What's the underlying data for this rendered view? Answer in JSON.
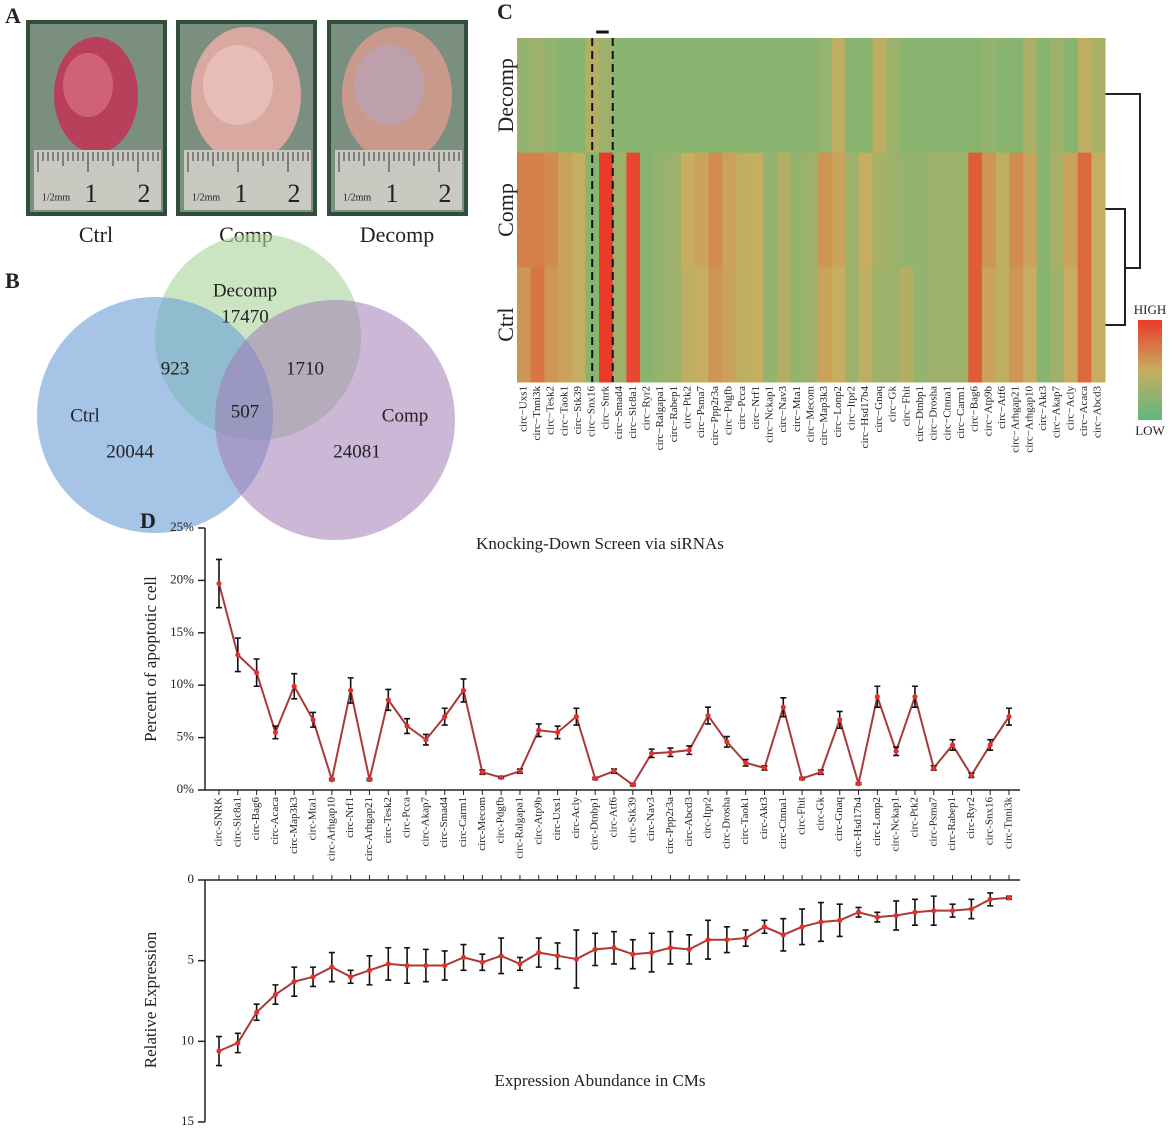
{
  "panel_labels": [
    "A",
    "B",
    "C",
    "D"
  ],
  "panel_a": {
    "samples": [
      "Ctrl",
      "Comp",
      "Decomp"
    ],
    "ruler_labels": [
      "1/2mm",
      "1",
      "2"
    ]
  },
  "panel_b": {
    "sets": [
      {
        "name": "Decomp",
        "color": "#a8d49a"
      },
      {
        "name": "Ctrl",
        "color": "#6b9fd6"
      },
      {
        "name": "Comp",
        "color": "#a37cb6"
      }
    ],
    "regions": [
      {
        "value": 17470
      },
      {
        "value": 923
      },
      {
        "value": 1710
      },
      {
        "value": 507
      },
      {
        "value": 20044
      },
      {
        "value": 24081
      }
    ]
  },
  "chart_data": [
    {
      "type": "heatmap",
      "rows": [
        "Decomp",
        "Comp",
        "Ctrl"
      ],
      "columns": [
        "circ−Uxs1",
        "circ−Tnni3k",
        "circ−Tesk2",
        "circ−Taok1",
        "circ−Stk39",
        "circ−Snx16",
        "circ−Snrk",
        "circ−Smad4",
        "circ−Slc8a1",
        "circ−Ryr2",
        "circ−Ralgapa1",
        "circ−Rabep1",
        "circ−Ptk2",
        "circ−Psma7",
        "circ−Ppp2r3a",
        "circ−Pdgfb",
        "circ−Pcca",
        "circ−Nrf1",
        "circ−Nckap1",
        "circ−Nav3",
        "circ−Mta1",
        "circ−Mecom",
        "circ−Map3k3",
        "circ−Lonp2",
        "circ−Itpr2",
        "circ−Hsd17b4",
        "circ−Gnaq",
        "circ−Gk",
        "circ−Fhit",
        "circ−Dtnbp1",
        "circ−Drosha",
        "circ−Ctnna1",
        "circ−Carm1",
        "circ−Bag6",
        "circ−Atp9b",
        "circ−Atf6",
        "circ−Arhgap21",
        "circ−Arhgap10",
        "circ−Akt3",
        "circ−Akap7",
        "circ−Acly",
        "circ−Acaca",
        "circ−Abcd3"
      ],
      "values": [
        [
          0.25,
          0.3,
          0.25,
          0.2,
          0.2,
          0.4,
          0.3,
          0.2,
          0.2,
          0.2,
          0.2,
          0.2,
          0.2,
          0.2,
          0.2,
          0.2,
          0.2,
          0.2,
          0.2,
          0.2,
          0.2,
          0.2,
          0.25,
          0.45,
          0.2,
          0.2,
          0.45,
          0.3,
          0.2,
          0.2,
          0.2,
          0.2,
          0.2,
          0.2,
          0.25,
          0.2,
          0.2,
          0.35,
          0.2,
          0.3,
          0.2,
          0.45,
          0.35
        ],
        [
          0.7,
          0.7,
          0.65,
          0.55,
          0.5,
          0.2,
          1.0,
          0.3,
          0.95,
          0.2,
          0.25,
          0.3,
          0.5,
          0.55,
          0.65,
          0.55,
          0.45,
          0.5,
          0.25,
          0.4,
          0.25,
          0.3,
          0.6,
          0.55,
          0.3,
          0.5,
          0.35,
          0.3,
          0.25,
          0.25,
          0.3,
          0.3,
          0.3,
          0.85,
          0.6,
          0.45,
          0.65,
          0.55,
          0.2,
          0.35,
          0.55,
          0.8,
          0.5
        ],
        [
          0.6,
          0.75,
          0.6,
          0.55,
          0.5,
          0.2,
          1.0,
          0.3,
          0.95,
          0.2,
          0.25,
          0.3,
          0.45,
          0.5,
          0.6,
          0.55,
          0.45,
          0.5,
          0.25,
          0.4,
          0.25,
          0.3,
          0.55,
          0.5,
          0.3,
          0.45,
          0.3,
          0.3,
          0.4,
          0.25,
          0.3,
          0.3,
          0.3,
          0.85,
          0.55,
          0.45,
          0.6,
          0.5,
          0.2,
          0.3,
          0.5,
          0.8,
          0.5
        ]
      ],
      "colors": [
        "#5fb87c",
        "#c7ad5f",
        "#ea3a2a"
      ],
      "legend": [
        "HIGH",
        "LOW"
      ]
    },
    {
      "type": "line",
      "title": "Knocking-Down Screen via siRNAs",
      "ylabel": "Percent of apoptotic cell",
      "categories": [
        "circ-SNRK",
        "circ-Slc8a1",
        "circ-Bag6",
        "circ-Acaca",
        "circ-Map3k3",
        "circ-Mta1",
        "circ-Arhgap10",
        "circ-Nrf1",
        "circ-Arhgap21",
        "circ-Tesk2",
        "circ-Pcca",
        "circ-Akap7",
        "circ-Smad4",
        "circ-Carm1",
        "circ-Mecom",
        "circ-Pdgfb",
        "circ-Ralgapa1",
        "circ-Atp9b",
        "circ-Uxs1",
        "circ-Acly",
        "circ-Dtnbp1",
        "circ-Atf6",
        "circ-Stk39",
        "circ-Nav3",
        "circ-Ppp2r3a",
        "circ-Abcd3",
        "circ-Itpr2",
        "circ-Drosha",
        "circ-Taok1",
        "circ-Akt3",
        "circ-Ctnna1",
        "circ-Fhit",
        "circ-Gk",
        "circ-Gnaq",
        "circ-Hsd17b4",
        "circ-Lonp2",
        "circ-Nckap1",
        "circ-Ptk2",
        "circ-Psma7",
        "circ-Rabep1",
        "circ-Ryr2",
        "circ-Snx16",
        "circ-Tnni3k"
      ],
      "highlight_category": 0,
      "highlight_color": "#d9542b",
      "values": [
        19.7,
        12.9,
        11.2,
        5.5,
        9.9,
        6.7,
        1.0,
        9.5,
        1.0,
        8.6,
        6.1,
        4.8,
        7.0,
        9.5,
        1.7,
        1.2,
        1.8,
        5.7,
        5.5,
        7.0,
        1.1,
        1.8,
        0.5,
        3.5,
        3.6,
        3.8,
        7.1,
        4.6,
        2.6,
        2.1,
        7.9,
        1.1,
        1.7,
        6.7,
        0.6,
        8.9,
        3.7,
        8.9,
        2.1,
        4.3,
        1.4,
        4.3,
        7.0
      ],
      "errors": [
        2.3,
        1.6,
        1.3,
        0.6,
        1.2,
        0.7,
        0.1,
        1.2,
        0.1,
        1.0,
        0.7,
        0.5,
        0.8,
        1.1,
        0.2,
        0.1,
        0.2,
        0.6,
        0.6,
        0.8,
        0.1,
        0.2,
        0.1,
        0.4,
        0.4,
        0.4,
        0.8,
        0.5,
        0.3,
        0.2,
        0.9,
        0.1,
        0.2,
        0.8,
        0.1,
        1.0,
        0.4,
        1.0,
        0.2,
        0.5,
        0.2,
        0.5,
        0.8
      ],
      "color": "#a83a3a",
      "point_color": "#e3302a",
      "ylim": [
        0,
        25
      ],
      "yticks": [
        {
          "value": 0,
          "label": "0%"
        },
        {
          "value": 5,
          "label": "5%"
        },
        {
          "value": 10,
          "label": "10%"
        },
        {
          "value": 15,
          "label": "15%"
        },
        {
          "value": 20,
          "label": "20%"
        },
        {
          "value": 25,
          "label": "25%"
        }
      ]
    },
    {
      "type": "line",
      "title": "Expression Abundance in CMs",
      "ylabel": "Relative Expression",
      "inverted": true,
      "values": [
        10.6,
        10.1,
        8.2,
        7.1,
        6.3,
        6.0,
        5.4,
        6.0,
        5.6,
        5.2,
        5.3,
        5.3,
        5.3,
        4.8,
        5.1,
        4.7,
        5.2,
        4.5,
        4.7,
        4.9,
        4.3,
        4.2,
        4.6,
        4.5,
        4.2,
        4.3,
        3.7,
        3.7,
        3.6,
        2.9,
        3.4,
        2.9,
        2.6,
        2.5,
        2.0,
        2.3,
        2.2,
        2.0,
        1.9,
        1.9,
        1.8,
        1.2,
        1.1
      ],
      "errors": [
        0.9,
        0.6,
        0.5,
        0.6,
        0.9,
        0.6,
        0.9,
        0.4,
        0.9,
        1.0,
        1.1,
        1.0,
        0.9,
        0.8,
        0.5,
        1.1,
        0.4,
        0.9,
        0.8,
        1.8,
        1.0,
        1.0,
        0.9,
        1.2,
        1.0,
        0.9,
        1.2,
        0.8,
        0.5,
        0.4,
        1.0,
        1.1,
        1.2,
        1.0,
        0.3,
        0.3,
        0.9,
        0.8,
        0.9,
        0.4,
        0.6,
        0.4,
        0.1
      ],
      "color": "#a83a3a",
      "point_color": "#e3302a",
      "ylim": [
        0,
        15
      ],
      "yticks": [
        0,
        5,
        10,
        15
      ]
    }
  ]
}
